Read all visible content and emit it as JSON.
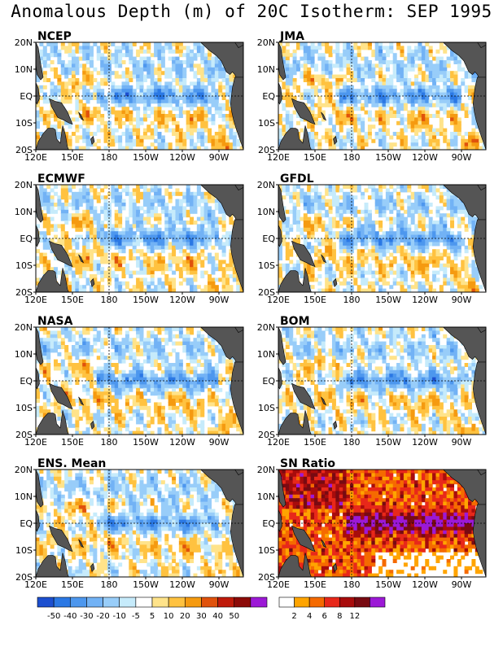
{
  "title": "Anomalous Depth (m) of 20C Isotherm: SEP 1995",
  "chart_data": {
    "type": "heatmap",
    "x_axis": {
      "ticks": [
        "120E",
        "150E",
        "180",
        "150W",
        "120W",
        "90W"
      ],
      "range_lon_east": [
        120,
        290
      ]
    },
    "y_axis": {
      "ticks": [
        "20N",
        "10N",
        "EQ",
        "10S",
        "20S"
      ],
      "range_lat": [
        -20,
        20
      ]
    },
    "dashed_reference_lines": [
      "180",
      "EQ"
    ],
    "land_color": "#555555",
    "panels": [
      {
        "name": "NCEP",
        "variable": "depth-anomaly"
      },
      {
        "name": "JMA",
        "variable": "depth-anomaly"
      },
      {
        "name": "ECMWF",
        "variable": "depth-anomaly"
      },
      {
        "name": "GFDL",
        "variable": "depth-anomaly"
      },
      {
        "name": "NASA",
        "variable": "depth-anomaly"
      },
      {
        "name": "BOM",
        "variable": "depth-anomaly"
      },
      {
        "name": "ENS. Mean",
        "variable": "depth-anomaly"
      },
      {
        "name": "SN Ratio",
        "variable": "sn-ratio"
      }
    ],
    "anomaly_colorbar": {
      "labels": [
        "-50",
        "-40",
        "-30",
        "-20",
        "-10",
        "-5",
        "5",
        "10",
        "20",
        "30",
        "40",
        "50"
      ],
      "colors": [
        "#1c4fcf",
        "#2b78e4",
        "#4d97ee",
        "#72b2f5",
        "#98cdf9",
        "#c6ebfb",
        "#ffffff",
        "#ffe38a",
        "#ffc240",
        "#f59a10",
        "#e0520c",
        "#bf1a0a",
        "#8c0a08",
        "#9c19d6"
      ]
    },
    "snr_colorbar": {
      "labels": [
        "2",
        "4",
        "6",
        "8",
        "12"
      ],
      "colors": [
        "#ffffff",
        "#ffa400",
        "#f56a00",
        "#e8281a",
        "#a80c0c",
        "#780a12",
        "#9c19d6"
      ]
    }
  }
}
